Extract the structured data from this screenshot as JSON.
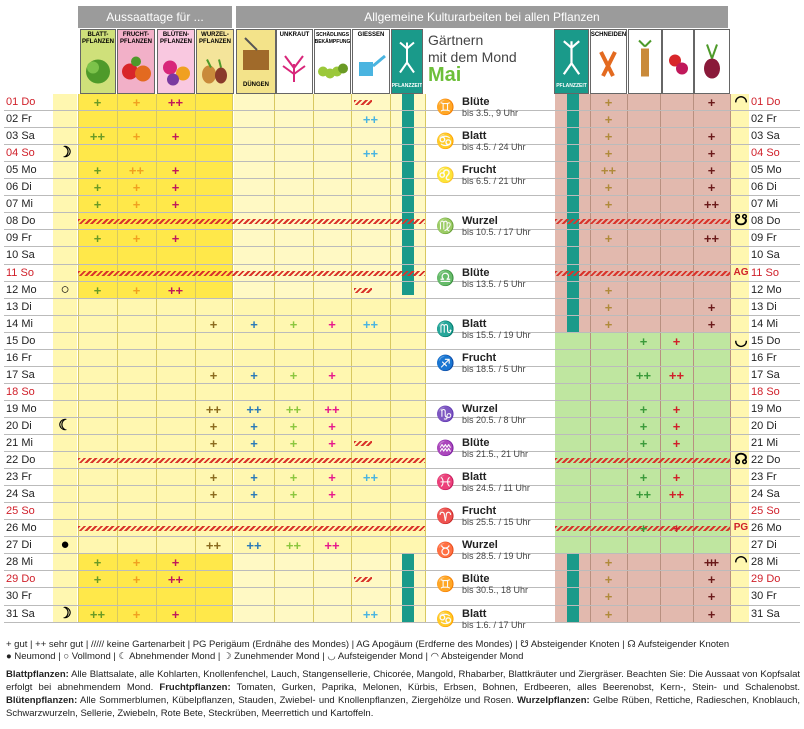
{
  "header": {
    "left_bar": "Aussaattage für ...",
    "right_bar": "Allgemeine Kulturarbeiten bei allen Pflanzen",
    "title_line1": "Gärtnern",
    "title_line2": "mit dem Mond",
    "month": "Mai",
    "icons_left": [
      "BLATT-PFLANZEN",
      "FRUCHT-PFLANZEN",
      "BLÜTEN-PFLANZEN",
      "WURZEL-PFLANZEN"
    ],
    "icons_mid": [
      "DÜNGEN",
      "UNKRAUT",
      "SCHÄDLINGS BEKÄMPFUNG",
      "GIESSEN",
      "PFLANZZEIT"
    ],
    "icons_right": [
      "PFLANZZEIT",
      "SCHNEIDEN",
      "VEREDELN",
      "ERNTEN",
      "WURZEL-PFLANZEN ERNTEN"
    ]
  },
  "days": [
    {
      "d": "01",
      "w": "Do",
      "red": true
    },
    {
      "d": "02",
      "w": "Fr"
    },
    {
      "d": "03",
      "w": "Sa"
    },
    {
      "d": "04",
      "w": "So",
      "red": true
    },
    {
      "d": "05",
      "w": "Mo"
    },
    {
      "d": "06",
      "w": "Di"
    },
    {
      "d": "07",
      "w": "Mi"
    },
    {
      "d": "08",
      "w": "Do"
    },
    {
      "d": "09",
      "w": "Fr"
    },
    {
      "d": "10",
      "w": "Sa"
    },
    {
      "d": "11",
      "w": "So",
      "red": true
    },
    {
      "d": "12",
      "w": "Mo"
    },
    {
      "d": "13",
      "w": "Di"
    },
    {
      "d": "14",
      "w": "Mi"
    },
    {
      "d": "15",
      "w": "Do"
    },
    {
      "d": "16",
      "w": "Fr"
    },
    {
      "d": "17",
      "w": "Sa"
    },
    {
      "d": "18",
      "w": "So",
      "red": true
    },
    {
      "d": "19",
      "w": "Mo"
    },
    {
      "d": "20",
      "w": "Di"
    },
    {
      "d": "21",
      "w": "Mi"
    },
    {
      "d": "22",
      "w": "Do"
    },
    {
      "d": "23",
      "w": "Fr"
    },
    {
      "d": "24",
      "w": "Sa"
    },
    {
      "d": "25",
      "w": "So",
      "red": true
    },
    {
      "d": "26",
      "w": "Mo"
    },
    {
      "d": "27",
      "w": "Di"
    },
    {
      "d": "28",
      "w": "Mi"
    },
    {
      "d": "29",
      "w": "Do",
      "red": true
    },
    {
      "d": "30",
      "w": "Fr"
    },
    {
      "d": "31",
      "w": "Sa"
    }
  ],
  "signs": [
    {
      "name": "Blüte",
      "date": "bis 3.5., 9 Uhr",
      "glyph": "♊"
    },
    {
      "name": "Blatt",
      "date": "bis 4.5. / 24 Uhr",
      "glyph": "♋"
    },
    {
      "name": "Frucht",
      "date": "bis 6.5. / 21 Uhr",
      "glyph": "♌"
    },
    {
      "name": "Wurzel",
      "date": "bis 10.5. / 17 Uhr",
      "glyph": "♍"
    },
    {
      "name": "Blüte",
      "date": "bis 13.5. / 5 Uhr",
      "glyph": "♎"
    },
    {
      "name": "Blatt",
      "date": "bis 15.5. / 19 Uhr",
      "glyph": "♏"
    },
    {
      "name": "Frucht",
      "date": "bis 18.5. / 5 Uhr",
      "glyph": "♐"
    },
    {
      "name": "Wurzel",
      "date": "bis 20.5. / 8 Uhr",
      "glyph": "♑"
    },
    {
      "name": "Blüte",
      "date": "bis 21.5., 21 Uhr",
      "glyph": "♒"
    },
    {
      "name": "Blatt",
      "date": "bis 24.5. / 11 Uhr",
      "glyph": "♓"
    },
    {
      "name": "Frucht",
      "date": "bis 25.5. / 15 Uhr",
      "glyph": "♈"
    },
    {
      "name": "Wurzel",
      "date": "bis 28.5. / 19 Uhr",
      "glyph": "♉"
    },
    {
      "name": "Blüte",
      "date": "bis 30.5., 18 Uhr",
      "glyph": "♊"
    },
    {
      "name": "Blatt",
      "date": "bis 1.6. / 17 Uhr",
      "glyph": "♋"
    }
  ],
  "markers": {
    "ag": "AG",
    "pg": "PG"
  },
  "legend_line1": "+ gut | ++ sehr gut | ///// keine Gartenarbeit | PG Perigäum (Erdnähe des Mondes) | AG Apogäum (Erdferne des Mondes) | ☋ Absteigender Knoten | ☊ Aufsteigender Knoten",
  "legend_line2": "● Neumond | ○ Vollmond | ☾ Abnehmender Mond | ☽ Zunehmender Mond | ◡ Aufsteigender Mond | ◠ Absteigender Mond",
  "footnote": [
    {
      "b": "Blattpflanzen:",
      "t": " Alle Blattsalate, alle Kohlarten, Knollenfenchel, Lauch, Stangensellerie, Chicorée, Mangold, Rhabarber, Blattkräuter und Ziergräser. Beachten Sie: Die Aussaat von Kopfsalat erfolgt bei abnehmendem Mond. "
    },
    {
      "b": "Fruchtpflanzen:",
      "t": " Tomaten, Gurken, Paprika, Melonen, Kürbis, Erbsen, Bohnen, Erdbeeren, alles Beerenobst, Kern-, Stein- und Schalenobst. "
    },
    {
      "b": "Blütenpflanzen:",
      "t": " Alle Sommerblumen, Kübelpflanzen, Stauden, Zwiebel- und Knollenpflanzen, Ziergehölze und Rosen. "
    },
    {
      "b": "Wurzelpflanzen:",
      "t": " Gelbe Rüben, Rettiche, Radieschen, Knoblauch, Schwarzwurzeln, Sellerie, Zwiebeln, Rote Bete, Steckrüben, Meerrettich und Kartoffeln."
    }
  ],
  "colors": {
    "yellow": "#fff7b0",
    "yellowDark": "#ffe84a",
    "pink": "#e2b9ae",
    "green": "#bfe6a0",
    "teal": "#1a9a8a",
    "grey": "#9b9b9b"
  }
}
